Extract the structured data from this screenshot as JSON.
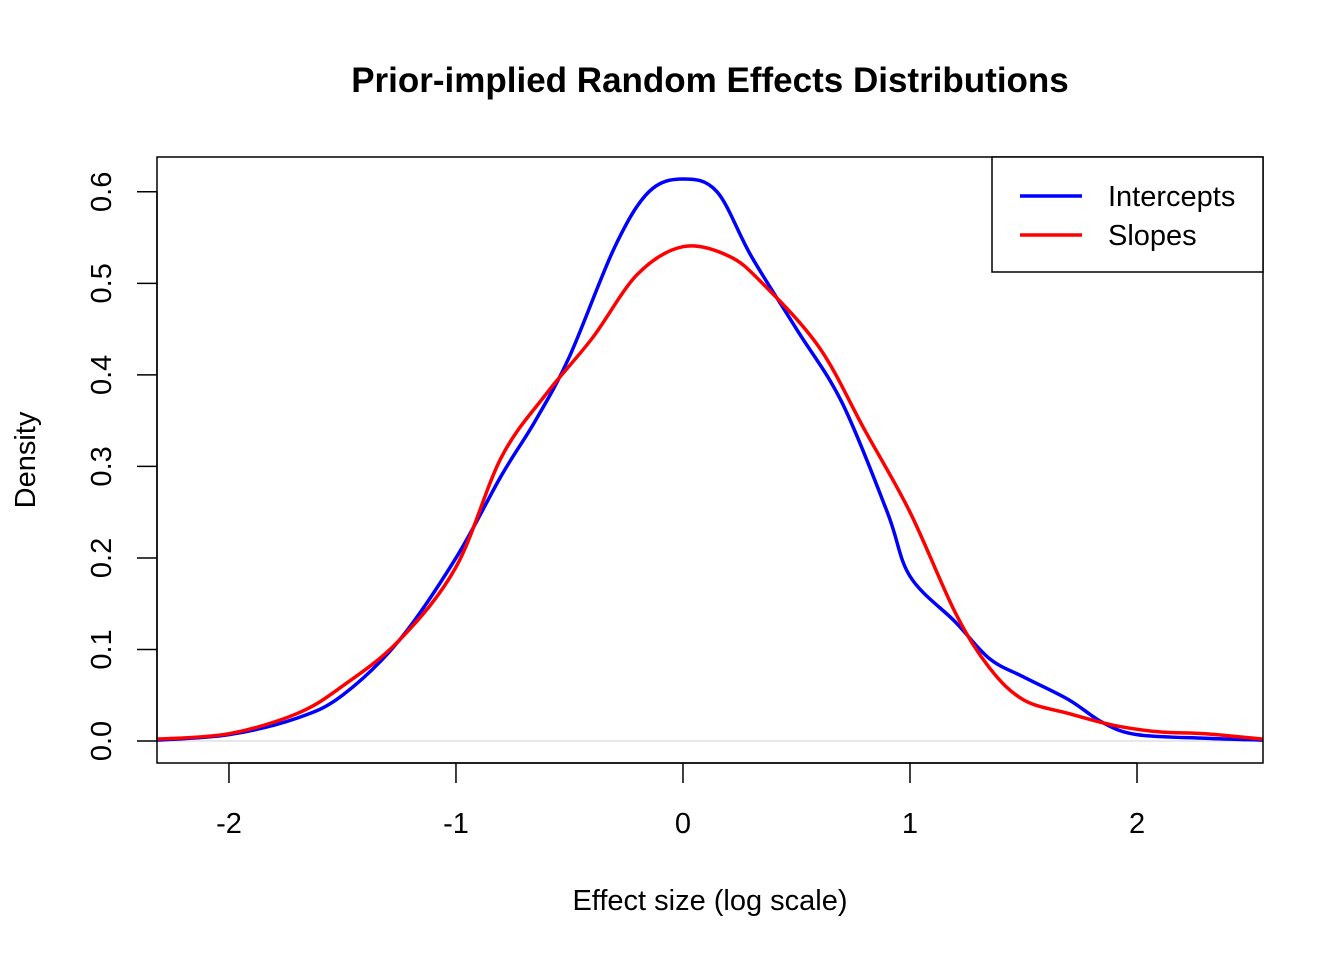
{
  "chart_data": {
    "type": "line",
    "title": "Prior-implied Random Effects Distributions",
    "xlabel": "Effect size (log scale)",
    "ylabel": "Density",
    "xlim": [
      -2.317,
      2.555
    ],
    "ylim": [
      -0.024,
      0.638
    ],
    "xticks": [
      -2,
      -1,
      0,
      1,
      2
    ],
    "xtick_labels": [
      "-2",
      "-1",
      "0",
      "1",
      "2"
    ],
    "yticks": [
      0,
      0.1,
      0.2,
      0.3,
      0.4,
      0.5,
      0.6
    ],
    "ytick_labels": [
      "0.0",
      "0.1",
      "0.2",
      "0.3",
      "0.4",
      "0.5",
      "0.6"
    ],
    "reference_line_y": 0,
    "grid": false,
    "legend_position": "top-right",
    "series": [
      {
        "name": "Intercepts",
        "color": "#0000ff",
        "x": [
          -2.317,
          -2.0,
          -1.7,
          -1.5,
          -1.25,
          -1.0,
          -0.8,
          -0.65,
          -0.5,
          -0.3,
          -0.15,
          0.0,
          0.15,
          0.3,
          0.5,
          0.7,
          0.9,
          1.0,
          1.2,
          1.35,
          1.5,
          1.7,
          1.85,
          2.0,
          2.3,
          2.555
        ],
        "y": [
          0.001,
          0.007,
          0.025,
          0.05,
          0.11,
          0.2,
          0.29,
          0.35,
          0.42,
          0.54,
          0.6,
          0.614,
          0.6,
          0.53,
          0.45,
          0.37,
          0.25,
          0.18,
          0.13,
          0.09,
          0.07,
          0.045,
          0.02,
          0.007,
          0.003,
          0.001
        ]
      },
      {
        "name": "Slopes",
        "color": "#ff0000",
        "x": [
          -2.317,
          -2.0,
          -1.7,
          -1.5,
          -1.25,
          -1.0,
          -0.8,
          -0.6,
          -0.4,
          -0.2,
          0.0,
          0.2,
          0.35,
          0.6,
          0.8,
          1.0,
          1.2,
          1.35,
          1.5,
          1.7,
          1.9,
          2.1,
          2.3,
          2.555
        ],
        "y": [
          0.002,
          0.008,
          0.03,
          0.06,
          0.11,
          0.19,
          0.31,
          0.38,
          0.44,
          0.51,
          0.54,
          0.53,
          0.5,
          0.43,
          0.34,
          0.25,
          0.14,
          0.08,
          0.045,
          0.03,
          0.017,
          0.01,
          0.008,
          0.002
        ]
      }
    ]
  }
}
